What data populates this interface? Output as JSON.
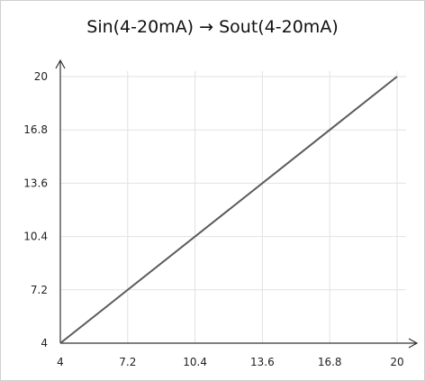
{
  "chart_data": {
    "type": "line",
    "title": "Sin(4-20mA)  → Sout(4-20mA)",
    "xlabel": "",
    "ylabel": "",
    "xlim": [
      4,
      20
    ],
    "ylim": [
      4,
      20
    ],
    "x_ticks": [
      "4",
      "7.2",
      "10.4",
      "13.6",
      "16.8",
      "20"
    ],
    "y_ticks": [
      "4",
      "7.2",
      "10.4",
      "13.6",
      "16.8",
      "20"
    ],
    "grid": true,
    "series": [
      {
        "x": [
          4,
          20
        ],
        "y": [
          4,
          20
        ]
      }
    ],
    "colors": {
      "line": "#5a5a5a",
      "grid": "#e2e2e2",
      "axis": "#333333"
    }
  }
}
